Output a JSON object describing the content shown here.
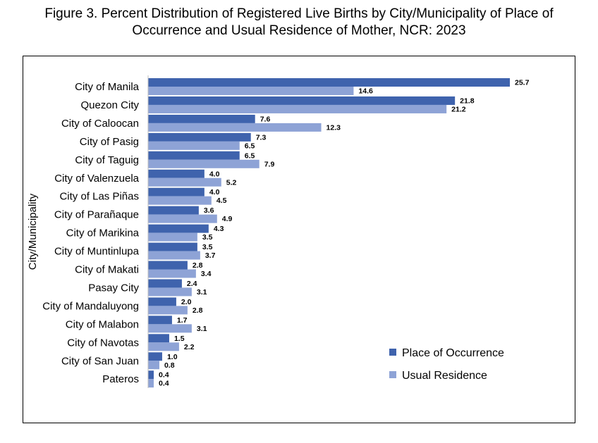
{
  "title_line1": "Figure 3. Percent Distribution of Registered Live Births by City/Municipality of Place of",
  "title_line2": "Occurrence and Usual Residence of Mother, NCR: 2023",
  "chart_data": {
    "type": "bar",
    "orientation": "horizontal",
    "title": "Figure 3. Percent Distribution of Registered Live Births by City/Municipality of Place of Occurrence and Usual Residence of Mother, NCR: 2023",
    "ylabel": "City/Municipality",
    "xlabel": "",
    "categories": [
      "City of Manila",
      "Quezon City",
      "City of Caloocan",
      "City of Pasig",
      "City of Taguig",
      "City of Valenzuela",
      "City of Las Piñas",
      "City of Parañaque",
      "City of Marikina",
      "City of Muntinlupa",
      "City of Makati",
      "Pasay City",
      "City of Mandaluyong",
      "City of Malabon",
      "City of Navotas",
      "City of San Juan",
      "Pateros"
    ],
    "series": [
      {
        "name": "Place of Occurrence",
        "color": "#3f63ad",
        "values": [
          25.7,
          21.8,
          7.6,
          7.3,
          6.5,
          4.0,
          4.0,
          3.6,
          4.3,
          3.5,
          2.8,
          2.4,
          2.0,
          1.7,
          1.5,
          1.0,
          0.4
        ]
      },
      {
        "name": "Usual Residence",
        "color": "#8ea3d6",
        "values": [
          14.6,
          21.2,
          12.3,
          6.5,
          7.9,
          5.2,
          4.5,
          4.9,
          3.5,
          3.7,
          3.4,
          3.1,
          2.8,
          3.1,
          2.2,
          0.8,
          0.4
        ]
      }
    ],
    "xlim": [
      0,
      25.7
    ],
    "grid": false,
    "legend_position": "lower-right"
  }
}
